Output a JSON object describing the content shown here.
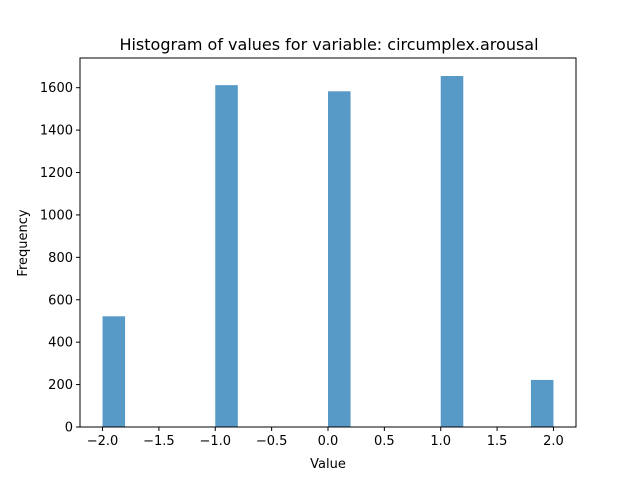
{
  "chart_data": {
    "type": "bar",
    "title": "Histogram of values for variable: circumplex.arousal",
    "xlabel": "Value",
    "ylabel": "Frequency",
    "xlim": [
      -2.2,
      2.2
    ],
    "ylim": [
      0,
      1740
    ],
    "xticks": [
      -2.0,
      -1.5,
      -1.0,
      -0.5,
      0.0,
      0.5,
      1.0,
      1.5,
      2.0
    ],
    "xtick_labels": [
      "−2.0",
      "−1.5",
      "−1.0",
      "−0.5",
      "0.0",
      "0.5",
      "1.0",
      "1.5",
      "2.0"
    ],
    "yticks": [
      0,
      200,
      400,
      600,
      800,
      1000,
      1200,
      1400,
      1600
    ],
    "ytick_labels": [
      "0",
      "200",
      "400",
      "600",
      "800",
      "1000",
      "1200",
      "1400",
      "1600"
    ],
    "grid": false,
    "bar_color": "#5799c7",
    "bins": [
      {
        "x0": -2.0,
        "x1": -1.8,
        "value": 522
      },
      {
        "x0": -1.0,
        "x1": -0.8,
        "value": 1612
      },
      {
        "x0": 0.0,
        "x1": 0.2,
        "value": 1583
      },
      {
        "x0": 1.0,
        "x1": 1.2,
        "value": 1655
      },
      {
        "x0": 1.8,
        "x1": 2.0,
        "value": 222
      }
    ]
  }
}
